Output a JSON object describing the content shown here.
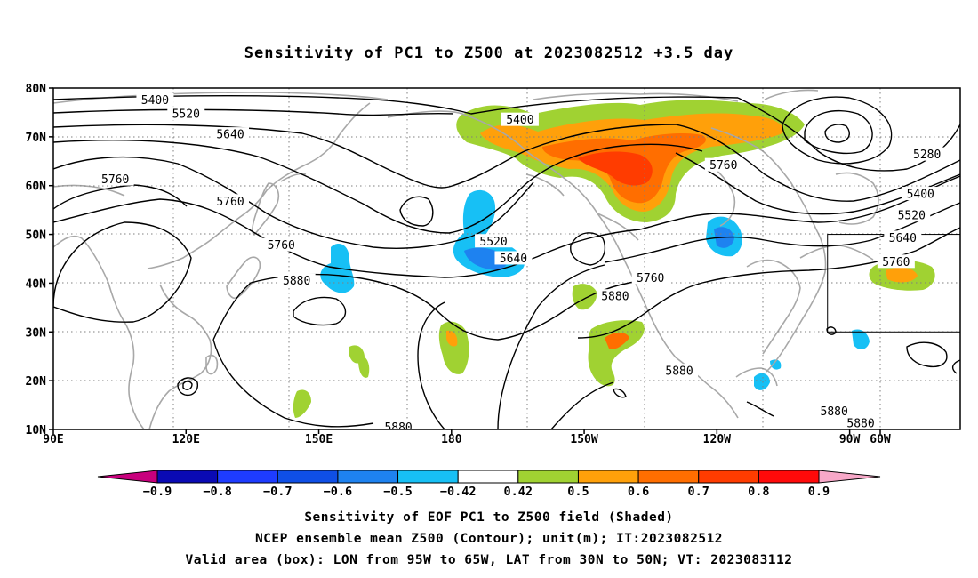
{
  "title": "Sensitivity of PC1 to Z500 at 2023082512 +3.5 day",
  "map": {
    "lon_range": [
      90,
      295
    ],
    "lat_range": [
      10,
      80
    ],
    "lat_ticks": [
      {
        "lat": 80,
        "label": "80N"
      },
      {
        "lat": 70,
        "label": "70N"
      },
      {
        "lat": 60,
        "label": "60N"
      },
      {
        "lat": 50,
        "label": "50N"
      },
      {
        "lat": 40,
        "label": "40N"
      },
      {
        "lat": 30,
        "label": "30N"
      },
      {
        "lat": 20,
        "label": "20N"
      },
      {
        "lat": 10,
        "label": "10N"
      }
    ],
    "lon_ticks": [
      {
        "lon": 90,
        "label": "90E"
      },
      {
        "lon": 120,
        "label": "120E"
      },
      {
        "lon": 150,
        "label": "150E"
      },
      {
        "lon": 180,
        "label": "180"
      },
      {
        "lon": 210,
        "label": "150W"
      },
      {
        "lon": 240,
        "label": "120W"
      },
      {
        "lon": 270,
        "label": "90W"
      },
      {
        "lon": 300,
        "label": "60W"
      }
    ],
    "contour_labels": [
      {
        "text": "5400",
        "lon": 113,
        "lat": 77.5
      },
      {
        "text": "5520",
        "lon": 120,
        "lat": 74.7
      },
      {
        "text": "5640",
        "lon": 130,
        "lat": 70.5
      },
      {
        "text": "5760",
        "lon": 104,
        "lat": 61.3
      },
      {
        "text": "5760",
        "lon": 130,
        "lat": 56.8
      },
      {
        "text": "5760",
        "lon": 141.5,
        "lat": 47.8
      },
      {
        "text": "5880",
        "lon": 145,
        "lat": 40.5
      },
      {
        "text": "5400",
        "lon": 195.5,
        "lat": 73.5
      },
      {
        "text": "5520",
        "lon": 189.5,
        "lat": 48.6
      },
      {
        "text": "5640",
        "lon": 194,
        "lat": 45.1
      },
      {
        "text": "5760",
        "lon": 241.5,
        "lat": 64.2
      },
      {
        "text": "5760",
        "lon": 225,
        "lat": 41.1
      },
      {
        "text": "5880",
        "lon": 217,
        "lat": 37.3
      },
      {
        "text": "5880",
        "lon": 231.5,
        "lat": 22.0
      },
      {
        "text": "5880",
        "lon": 266.5,
        "lat": 13.7
      },
      {
        "text": "5880",
        "lon": 272.5,
        "lat": 11.3
      },
      {
        "text": "5880",
        "lon": 168,
        "lat": 10.5
      },
      {
        "text": "5280",
        "lon": 287.5,
        "lat": 66.4
      },
      {
        "text": "5400",
        "lon": 286,
        "lat": 58.3
      },
      {
        "text": "5520",
        "lon": 284,
        "lat": 53.9
      },
      {
        "text": "5640",
        "lon": 282,
        "lat": 49.3
      },
      {
        "text": "5760",
        "lon": 280.5,
        "lat": 44.4
      }
    ],
    "valid_box": {
      "lon_w": 265,
      "lon_e": 295,
      "lat_s": 30,
      "lat_n": 50
    }
  },
  "colorbar": {
    "colors": [
      "#c8007d",
      "#0a0ab4",
      "#1e3cff",
      "#0f4fe6",
      "#1e82f0",
      "#17c0f5",
      "#ffffff",
      "#a0d232",
      "#ffa00a",
      "#ff6e00",
      "#ff3c00",
      "#ff0a0a",
      "#f7a8c8"
    ],
    "labels": [
      "-0.9",
      "-0.8",
      "-0.7",
      "-0.6",
      "-0.5",
      "-0.42",
      "0.42",
      "0.5",
      "0.6",
      "0.7",
      "0.8",
      "0.9"
    ]
  },
  "captions": {
    "line1": "Sensitivity of EOF PC1 to Z500 field (Shaded)",
    "line2": "NCEP ensemble mean Z500 (Contour); unit(m); IT:2023082512",
    "line3": "Valid area (box): LON from 95W to 65W, LAT from 30N to 50N; VT: 2023083112"
  }
}
